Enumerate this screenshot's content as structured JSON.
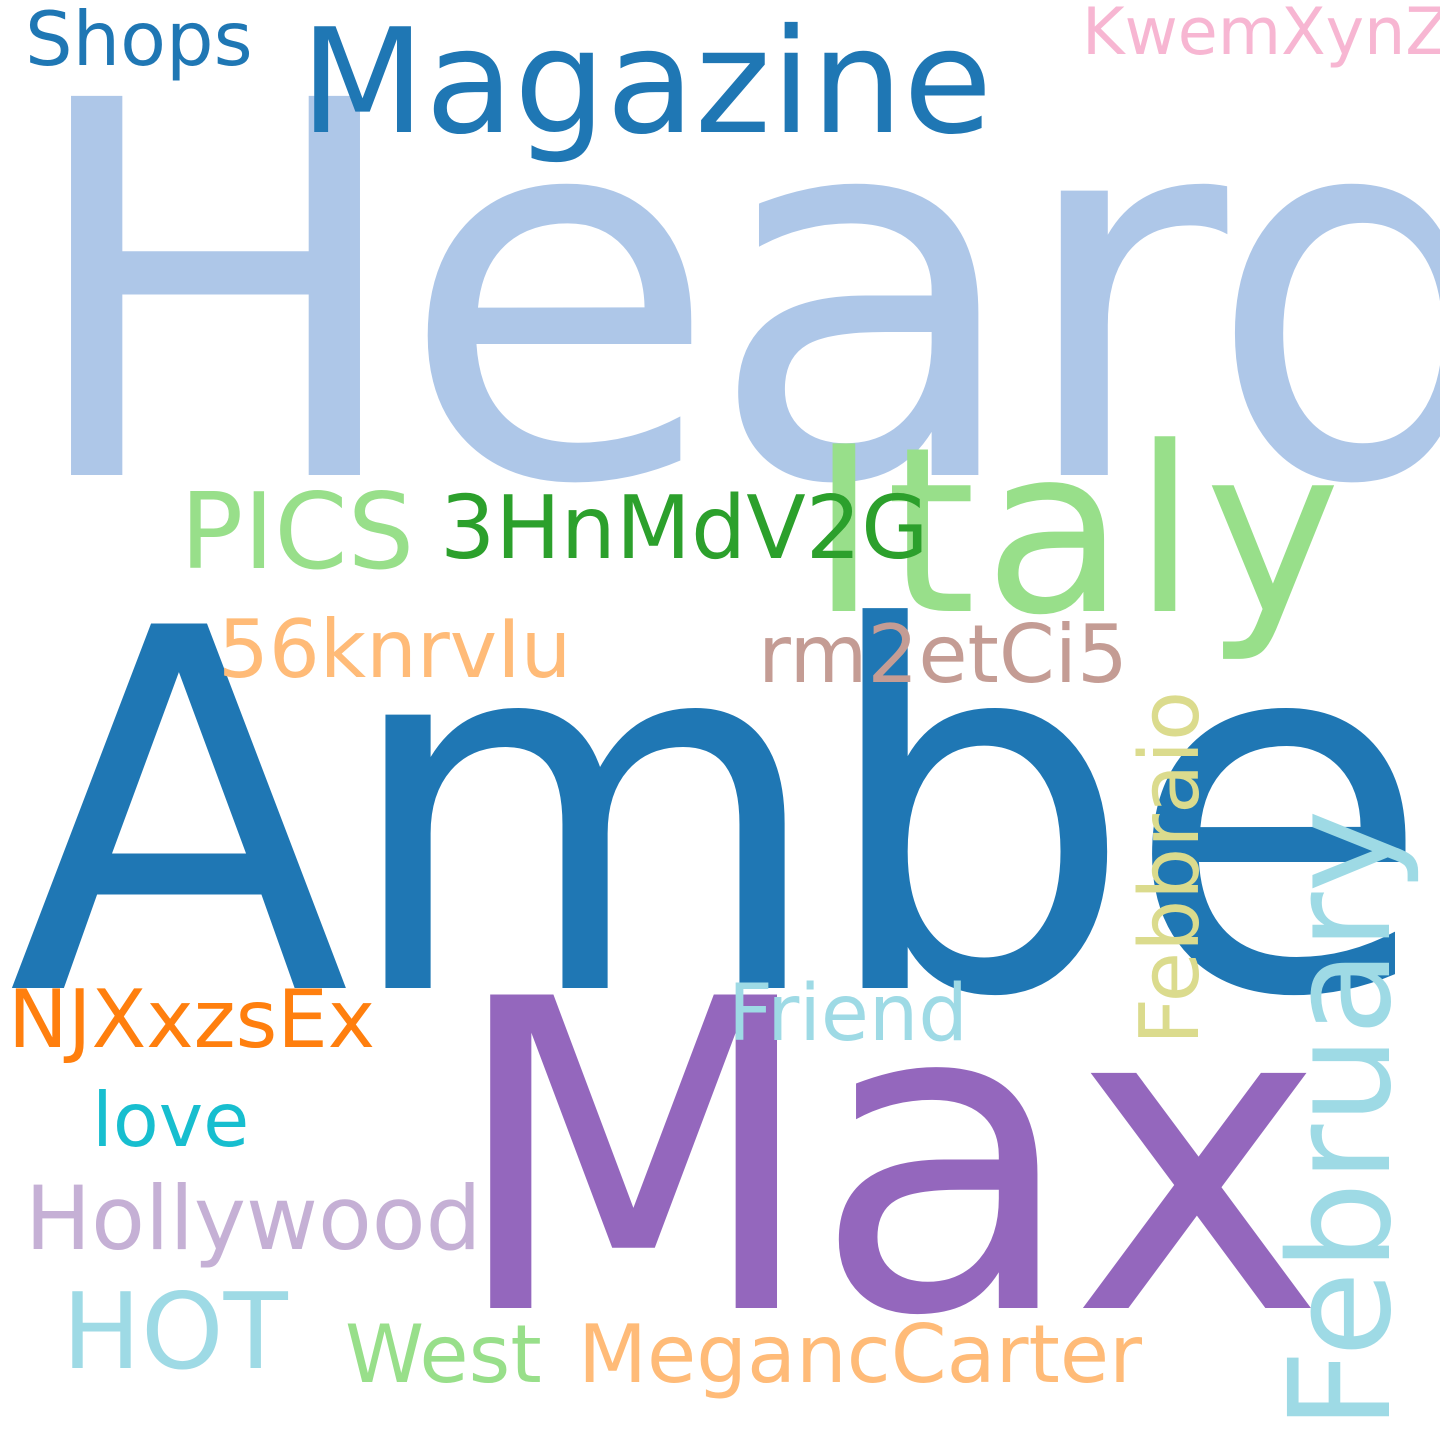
{
  "words": [
    {
      "text": "Heard",
      "color": "#aec7e8"
    },
    {
      "text": "Amber",
      "color": "#1f77b4"
    },
    {
      "text": "Max",
      "color": "#9467bd"
    },
    {
      "text": "Magazine",
      "color": "#1f77b4"
    },
    {
      "text": "Italy",
      "color": "#98df8a"
    },
    {
      "text": "Shops",
      "color": "#1f77b4"
    },
    {
      "text": "KwemXynZ",
      "color": "#f7b6d2"
    },
    {
      "text": "PICS",
      "color": "#98df8a"
    },
    {
      "text": "3HnMdV2G",
      "color": "#2ca02c"
    },
    {
      "text": "56knrvIu",
      "color": "#ffbb78"
    },
    {
      "text": "rm2etCi5",
      "color": "#c49c94"
    },
    {
      "text": "NJXxzsEx",
      "color": "#ff7f0e"
    },
    {
      "text": "Friend",
      "color": "#9edae5"
    },
    {
      "text": "love",
      "color": "#17becf"
    },
    {
      "text": "Hollywood",
      "color": "#c5b0d5"
    },
    {
      "text": "HOT",
      "color": "#9edae5"
    },
    {
      "text": "West",
      "color": "#98df8a"
    },
    {
      "text": "MegancCarter",
      "color": "#ffbb78"
    },
    {
      "text": "Febbraio",
      "color": "#dbdb8d"
    },
    {
      "text": "February",
      "color": "#9edae5"
    }
  ]
}
